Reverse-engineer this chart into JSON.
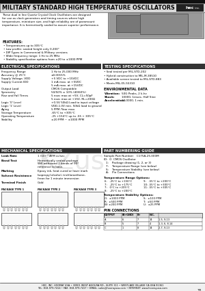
{
  "title": "MILITARY STANDARD HIGH TEMPERATURE OSCILLATORS",
  "bg_color": "#ffffff",
  "intro_lines": [
    "These dual in line Quartz Crystal Clock Oscillators are designed",
    "for use as clock generators and timing sources where high",
    "temperature, miniature size, and high reliability are of paramount",
    "importance. It is hermetically sealed to assure superior performance."
  ],
  "features_title": "FEATURES:",
  "features": [
    "Temperatures up to 305°C",
    "Low profile: seated height only 0.200\"",
    "DIP Types in Commercial & Military versions",
    "Wide frequency range: 1 Hz to 25 MHz",
    "Stability specification options from ±20 to ±1000 PPM"
  ],
  "elec_spec_title": "ELECTRICAL SPECIFICATIONS",
  "elec_specs": [
    [
      "Frequency Range",
      "1 Hz to 25.000 MHz"
    ],
    [
      "Accuracy @ 25°C",
      "±0.0015%"
    ],
    [
      "Supply Voltage, VDD",
      "+5 VDC to +15VDC"
    ],
    [
      "Supply Current IDD",
      "1 mA max. at +5VDC"
    ],
    [
      "",
      "5 mA max. at +15VDC"
    ],
    [
      "Output Load",
      "CMOS Compatible"
    ],
    [
      "Symmetry",
      "50/50% ± 10% (40/60%)"
    ],
    [
      "Rise and Fall Times",
      "5 nsec max at +5V, CL=50pF"
    ],
    [
      "",
      "5 nsec max at +15V, RL=200Ω"
    ],
    [
      "Logic '0' Level",
      "+0.5V 50kΩ Load to input voltage"
    ],
    [
      "Logic '1' Level",
      "VDD-1.0V min. 50kΩ load to ground"
    ],
    [
      "Aging",
      "5 PPM /Year max."
    ],
    [
      "Storage Temperature",
      "-65°C to +305°C"
    ],
    [
      "Operating Temperature",
      "-25 +154°C up to -55 + 305°C"
    ],
    [
      "Stability",
      "±20 PPM ~ ±1000 PPM"
    ]
  ],
  "test_spec_title": "TESTING SPECIFICATIONS",
  "test_specs": [
    "Seal tested per MIL-STD-202",
    "Hybrid construction to MIL-M-38510",
    "Available screen tested to MIL-STD-883",
    "Meets MIL-05-55310"
  ],
  "env_title": "ENVIRONMENTAL DATA",
  "env_specs": [
    [
      "Vibration:",
      "50G Peaks, 2 k-hz"
    ],
    [
      "Shock:",
      "10000, 1msec, Half Sine"
    ],
    [
      "Acceleration:",
      "10,0000, 1 min."
    ]
  ],
  "mech_spec_title": "MECHANICAL SPECIFICATIONS",
  "part_guide_title": "PART NUMBERING GUIDE",
  "mech_specs": [
    [
      "Leak Rate",
      "1 (10)⁻⁸ ATM cc/sec"
    ],
    [
      "Bend Test",
      "Hermetically sealed package\nWill withstand 2 bends of 90°\nreference to base."
    ],
    [
      "Marking",
      "Epoxy ink, heat cured or laser mark"
    ],
    [
      "Solvent Resistance",
      "Isopropyl alcohol, trichloroethane,\nfreon for 1 minute immersion"
    ],
    [
      "Terminal Finish",
      "Gold"
    ]
  ],
  "part_specs_1": "Sample Part Number:   C175A-25.000M",
  "part_specs_2": "ID:  O  CMOS Oscillator",
  "part_specs_items": [
    "1:    Package drawing (1, 2, or 3)",
    "7:    Temperature Range (see below)",
    "S:    Temperature Stability (see below)",
    "A:    Pin Connections"
  ],
  "temp_range_title": "Temperature Range Options:",
  "temp_ranges": [
    [
      "6:   -25°C to +150°C",
      "9:   -55°C to +200°C"
    ],
    [
      "7:   -25°C to +175°C",
      "10: -55°C to +300°C"
    ],
    [
      "7:   0°C to +205°C",
      "11: -55°C to +305°C"
    ],
    [
      "8:   -25°C to +200°C",
      ""
    ]
  ],
  "stab_title": "Temperature Stability Options:",
  "stab_items": [
    [
      "O:  ±1000 PPM",
      "S:  ±100 PPM"
    ],
    [
      "R:  ±500 PPM",
      "T:  ±50 PPM"
    ],
    [
      "W: ±200 PPM",
      "U:  ±25 PPM"
    ]
  ],
  "pin_title": "PIN CONNECTIONS",
  "pin_header": [
    "OUTPUT",
    "B(+GND)",
    "B+",
    "N.C."
  ],
  "pin_rows": [
    [
      "A",
      "6",
      "7",
      "14",
      "1-5, 9-13"
    ],
    [
      "B",
      "5",
      "7",
      "4",
      "1-3, 6, 8-14"
    ],
    [
      "C",
      "1",
      "8",
      "14",
      "2-7, 9-13"
    ]
  ],
  "pkg_types": [
    "PACKAGE TYPE 1",
    "PACKAGE TYPE 2",
    "PACKAGE TYPE 3"
  ],
  "footer1": "HEC, INC. HOORAY USA • 30901 WEST AGOURA RD., SUITE 311 • WESTLAKE VILLAGE CA USA 91361",
  "footer2": "TEL: 818-979-7414 • FAX: 818-979-7417 • EMAIL: sales@hoorayusa.com • INTERNET: www.hoorayusa.com",
  "page_num": "33"
}
